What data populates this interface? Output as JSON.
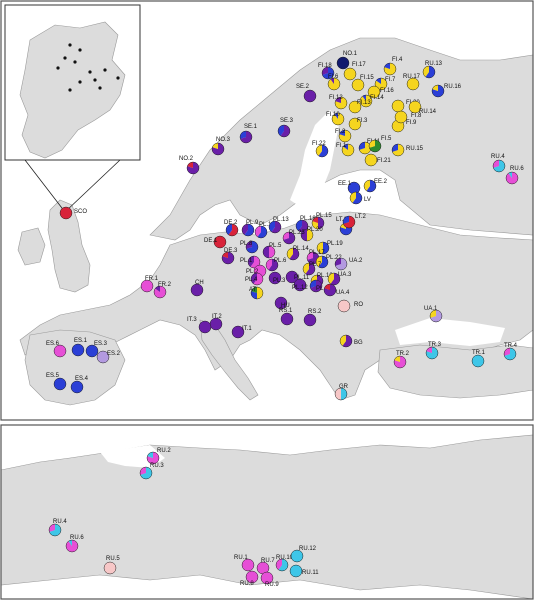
{
  "colors": {
    "magenta": "#e64fd6",
    "purple": "#6a1fa8",
    "blue": "#2b3fd6",
    "cyan": "#3ec6e8",
    "yellow": "#f5d51f",
    "red": "#d8233a",
    "green": "#2e8b2e",
    "lavender": "#b39ae0",
    "pink": "#f7c7c7",
    "navy": "#121a6e"
  },
  "top_panel": {
    "inset_label": "SCO",
    "sites": [
      {
        "label": "NO.1",
        "parts": [
          {
            "c": "navy",
            "v": 1
          }
        ]
      },
      {
        "label": "FI.18",
        "parts": [
          {
            "c": "blue",
            "v": 0.7
          },
          {
            "c": "purple",
            "v": 0.3
          }
        ]
      },
      {
        "label": "FI.17",
        "parts": [
          {
            "c": "yellow",
            "v": 1
          }
        ]
      },
      {
        "label": "FI.4",
        "parts": [
          {
            "c": "yellow",
            "v": 0.8
          },
          {
            "c": "blue",
            "v": 0.2
          }
        ]
      },
      {
        "label": "FI.6",
        "parts": [
          {
            "c": "yellow",
            "v": 0.9
          },
          {
            "c": "purple",
            "v": 0.1
          }
        ]
      },
      {
        "label": "FI.15",
        "parts": [
          {
            "c": "yellow",
            "v": 1
          }
        ]
      },
      {
        "label": "FI.7",
        "parts": [
          {
            "c": "yellow",
            "v": 0.85
          },
          {
            "c": "blue",
            "v": 0.15
          }
        ]
      },
      {
        "label": "FI.16",
        "parts": [
          {
            "c": "yellow",
            "v": 1
          }
        ]
      },
      {
        "label": "FI.14",
        "parts": [
          {
            "c": "yellow",
            "v": 0.9
          },
          {
            "c": "blue",
            "v": 0.1
          }
        ]
      },
      {
        "label": "FI.12",
        "parts": [
          {
            "c": "yellow",
            "v": 0.8
          },
          {
            "c": "purple",
            "v": 0.2
          }
        ]
      },
      {
        "label": "FI.13",
        "parts": [
          {
            "c": "yellow",
            "v": 1
          }
        ]
      },
      {
        "label": "FI.20",
        "parts": [
          {
            "c": "yellow",
            "v": 1
          }
        ]
      },
      {
        "label": "FI.10",
        "parts": [
          {
            "c": "yellow",
            "v": 0.9
          },
          {
            "c": "blue",
            "v": 0.1
          }
        ]
      },
      {
        "label": "FI.3",
        "parts": [
          {
            "c": "yellow",
            "v": 1
          }
        ]
      },
      {
        "label": "FI.9",
        "parts": [
          {
            "c": "yellow",
            "v": 1
          }
        ]
      },
      {
        "label": "FI.8",
        "parts": [
          {
            "c": "yellow",
            "v": 1
          }
        ]
      },
      {
        "label": "FI.2",
        "parts": [
          {
            "c": "yellow",
            "v": 0.8
          },
          {
            "c": "blue",
            "v": 0.2
          }
        ]
      },
      {
        "label": "FI.11",
        "parts": [
          {
            "c": "yellow",
            "v": 0.7
          },
          {
            "c": "blue",
            "v": 0.3
          }
        ]
      },
      {
        "label": "FI.5",
        "parts": [
          {
            "c": "green",
            "v": 0.7
          },
          {
            "c": "yellow",
            "v": 0.3
          }
        ]
      },
      {
        "label": "FI.1",
        "parts": [
          {
            "c": "yellow",
            "v": 0.85
          },
          {
            "c": "blue",
            "v": 0.15
          }
        ]
      },
      {
        "label": "FI.22",
        "parts": [
          {
            "c": "blue",
            "v": 0.6
          },
          {
            "c": "yellow",
            "v": 0.4
          }
        ]
      },
      {
        "label": "FI.21",
        "parts": [
          {
            "c": "yellow",
            "v": 1
          }
        ]
      },
      {
        "label": "RU.17",
        "parts": [
          {
            "c": "yellow",
            "v": 1
          }
        ]
      },
      {
        "label": "RU.13",
        "parts": [
          {
            "c": "blue",
            "v": 0.6
          },
          {
            "c": "yellow",
            "v": 0.4
          }
        ]
      },
      {
        "label": "RU.16",
        "parts": [
          {
            "c": "blue",
            "v": 0.8
          },
          {
            "c": "yellow",
            "v": 0.2
          }
        ]
      },
      {
        "label": "RU.14",
        "parts": [
          {
            "c": "yellow",
            "v": 1
          }
        ]
      },
      {
        "label": "RU.15",
        "parts": [
          {
            "c": "yellow",
            "v": 0.7
          },
          {
            "c": "blue",
            "v": 0.3
          }
        ]
      },
      {
        "label": "SE.2",
        "parts": [
          {
            "c": "purple",
            "v": 1
          }
        ]
      },
      {
        "label": "SE.1",
        "parts": [
          {
            "c": "purple",
            "v": 0.7
          },
          {
            "c": "blue",
            "v": 0.3
          }
        ]
      },
      {
        "label": "SE.3",
        "parts": [
          {
            "c": "purple",
            "v": 0.6
          },
          {
            "c": "blue",
            "v": 0.4
          }
        ]
      },
      {
        "label": "NO.3",
        "parts": [
          {
            "c": "purple",
            "v": 0.8
          },
          {
            "c": "yellow",
            "v": 0.2
          }
        ]
      },
      {
        "label": "NO.2",
        "parts": [
          {
            "c": "purple",
            "v": 0.8
          },
          {
            "c": "red",
            "v": 0.2
          }
        ]
      },
      {
        "label": "EE.1",
        "parts": [
          {
            "c": "blue",
            "v": 1
          }
        ]
      },
      {
        "label": "EE.2",
        "parts": [
          {
            "c": "blue",
            "v": 0.6
          },
          {
            "c": "yellow",
            "v": 0.4
          }
        ]
      },
      {
        "label": "LV",
        "parts": [
          {
            "c": "blue",
            "v": 0.6
          },
          {
            "c": "yellow",
            "v": 0.4
          }
        ]
      },
      {
        "label": "RU.4",
        "parts": [
          {
            "c": "cyan",
            "v": 0.7
          },
          {
            "c": "magenta",
            "v": 0.3
          }
        ]
      },
      {
        "label": "RU.6",
        "parts": [
          {
            "c": "magenta",
            "v": 0.9
          },
          {
            "c": "cyan",
            "v": 0.1
          }
        ]
      },
      {
        "label": "SCO",
        "parts": [
          {
            "c": "red",
            "v": 1
          }
        ]
      },
      {
        "label": "LT.1",
        "parts": [
          {
            "c": "blue",
            "v": 0.8
          },
          {
            "c": "yellow",
            "v": 0.2
          }
        ]
      },
      {
        "label": "LT.2",
        "parts": [
          {
            "c": "red",
            "v": 0.7
          },
          {
            "c": "blue",
            "v": 0.3
          }
        ]
      },
      {
        "label": "DE.2",
        "parts": [
          {
            "c": "red",
            "v": 0.6
          },
          {
            "c": "blue",
            "v": 0.4
          }
        ]
      },
      {
        "label": "DE.1",
        "parts": [
          {
            "c": "red",
            "v": 1
          }
        ]
      },
      {
        "label": "PL.9",
        "parts": [
          {
            "c": "blue",
            "v": 0.6
          },
          {
            "c": "purple",
            "v": 0.4
          }
        ]
      },
      {
        "label": "PL.16",
        "parts": [
          {
            "c": "blue",
            "v": 0.6
          },
          {
            "c": "magenta",
            "v": 0.4
          }
        ]
      },
      {
        "label": "PL.13",
        "parts": [
          {
            "c": "purple",
            "v": 0.6
          },
          {
            "c": "blue",
            "v": 0.4
          }
        ]
      },
      {
        "label": "PL.18",
        "parts": [
          {
            "c": "purple",
            "v": 0.6
          },
          {
            "c": "blue",
            "v": 0.4
          }
        ]
      },
      {
        "label": "PL.15",
        "parts": [
          {
            "c": "purple",
            "v": 0.5
          },
          {
            "c": "yellow",
            "v": 0.3
          },
          {
            "c": "red",
            "v": 0.2
          }
        ]
      },
      {
        "label": "PL.20",
        "parts": [
          {
            "c": "yellow",
            "v": 0.5
          },
          {
            "c": "purple",
            "v": 0.5
          }
        ]
      },
      {
        "label": "PL.23",
        "parts": [
          {
            "c": "purple",
            "v": 0.7
          },
          {
            "c": "magenta",
            "v": 0.3
          }
        ]
      },
      {
        "label": "PL.19",
        "parts": [
          {
            "c": "blue",
            "v": 0.5
          },
          {
            "c": "yellow",
            "v": 0.5
          }
        ]
      },
      {
        "label": "PL.8",
        "parts": [
          {
            "c": "blue",
            "v": 0.7
          },
          {
            "c": "purple",
            "v": 0.3
          }
        ]
      },
      {
        "label": "PL.5",
        "parts": [
          {
            "c": "magenta",
            "v": 0.5
          },
          {
            "c": "purple",
            "v": 0.5
          }
        ]
      },
      {
        "label": "PL.14",
        "parts": [
          {
            "c": "purple",
            "v": 0.6
          },
          {
            "c": "yellow",
            "v": 0.4
          }
        ]
      },
      {
        "label": "PL.17",
        "parts": [
          {
            "c": "purple",
            "v": 0.7
          },
          {
            "c": "magenta",
            "v": 0.3
          }
        ]
      },
      {
        "label": "PL.22",
        "parts": [
          {
            "c": "blue",
            "v": 0.6
          },
          {
            "c": "yellow",
            "v": 0.4
          }
        ]
      },
      {
        "label": "PL.1",
        "parts": [
          {
            "c": "magenta",
            "v": 0.6
          },
          {
            "c": "purple",
            "v": 0.4
          }
        ]
      },
      {
        "label": "PL.6",
        "parts": [
          {
            "c": "purple",
            "v": 0.6
          },
          {
            "c": "magenta",
            "v": 0.4
          }
        ]
      },
      {
        "label": "PL.7",
        "parts": [
          {
            "c": "purple",
            "v": 0.6
          },
          {
            "c": "yellow",
            "v": 0.4
          }
        ]
      },
      {
        "label": "PL.2",
        "parts": [
          {
            "c": "magenta",
            "v": 1
          }
        ]
      },
      {
        "label": "PL.3",
        "parts": [
          {
            "c": "purple",
            "v": 1
          }
        ]
      },
      {
        "label": "PL.4",
        "parts": [
          {
            "c": "magenta",
            "v": 0.6
          },
          {
            "c": "purple",
            "v": 0.4
          }
        ]
      },
      {
        "label": "PL.11",
        "parts": [
          {
            "c": "purple",
            "v": 1
          }
        ]
      },
      {
        "label": "PL.10",
        "parts": [
          {
            "c": "purple",
            "v": 0.7
          },
          {
            "c": "yellow",
            "v": 0.3
          }
        ]
      },
      {
        "label": "PL.12",
        "parts": [
          {
            "c": "purple",
            "v": 1
          }
        ]
      },
      {
        "label": "PL.21",
        "parts": [
          {
            "c": "purple",
            "v": 0.7
          },
          {
            "c": "blue",
            "v": 0.3
          }
        ]
      },
      {
        "label": "UA.2",
        "parts": [
          {
            "c": "lavender",
            "v": 0.7
          },
          {
            "c": "purple",
            "v": 0.3
          }
        ]
      },
      {
        "label": "UA.3",
        "parts": [
          {
            "c": "purple",
            "v": 0.6
          },
          {
            "c": "yellow",
            "v": 0.4
          }
        ]
      },
      {
        "label": "UA.4",
        "parts": [
          {
            "c": "purple",
            "v": 0.8
          },
          {
            "c": "red",
            "v": 0.2
          }
        ]
      },
      {
        "label": "DE.3",
        "parts": [
          {
            "c": "purple",
            "v": 0.8
          },
          {
            "c": "red",
            "v": 0.2
          }
        ]
      },
      {
        "label": "AT",
        "parts": [
          {
            "c": "yellow",
            "v": 0.5
          },
          {
            "c": "blue",
            "v": 0.3
          },
          {
            "c": "green",
            "v": 0.2
          }
        ]
      },
      {
        "label": "HU",
        "parts": [
          {
            "c": "purple",
            "v": 1
          }
        ]
      },
      {
        "label": "CH",
        "parts": [
          {
            "c": "purple",
            "v": 1
          }
        ]
      },
      {
        "label": "FR.1",
        "parts": [
          {
            "c": "magenta",
            "v": 1
          }
        ]
      },
      {
        "label": "FR.2",
        "parts": [
          {
            "c": "magenta",
            "v": 0.85
          },
          {
            "c": "purple",
            "v": 0.15
          }
        ]
      },
      {
        "label": "RO",
        "parts": [
          {
            "c": "pink",
            "v": 1
          }
        ]
      },
      {
        "label": "RS.1",
        "parts": [
          {
            "c": "purple",
            "v": 1
          }
        ]
      },
      {
        "label": "RS.2",
        "parts": [
          {
            "c": "purple",
            "v": 1
          }
        ]
      },
      {
        "label": "IT.2",
        "parts": [
          {
            "c": "purple",
            "v": 1
          }
        ]
      },
      {
        "label": "IT.3",
        "parts": [
          {
            "c": "purple",
            "v": 1
          }
        ]
      },
      {
        "label": "IT.1",
        "parts": [
          {
            "c": "purple",
            "v": 1
          }
        ]
      },
      {
        "label": "UA.1",
        "parts": [
          {
            "c": "lavender",
            "v": 0.7
          },
          {
            "c": "yellow",
            "v": 0.3
          }
        ]
      },
      {
        "label": "BG",
        "parts": [
          {
            "c": "purple",
            "v": 0.6
          },
          {
            "c": "yellow",
            "v": 0.4
          }
        ]
      },
      {
        "label": "ES.6",
        "parts": [
          {
            "c": "magenta",
            "v": 1
          }
        ]
      },
      {
        "label": "ES.1",
        "parts": [
          {
            "c": "blue",
            "v": 1
          }
        ]
      },
      {
        "label": "ES.3",
        "parts": [
          {
            "c": "blue",
            "v": 1
          }
        ]
      },
      {
        "label": "ES.2",
        "parts": [
          {
            "c": "lavender",
            "v": 1
          }
        ]
      },
      {
        "label": "ES.5",
        "parts": [
          {
            "c": "blue",
            "v": 1
          }
        ]
      },
      {
        "label": "ES.4",
        "parts": [
          {
            "c": "blue",
            "v": 1
          }
        ]
      },
      {
        "label": "GR",
        "parts": [
          {
            "c": "cyan",
            "v": 0.5
          },
          {
            "c": "pink",
            "v": 0.5
          }
        ]
      },
      {
        "label": "TR.2",
        "parts": [
          {
            "c": "magenta",
            "v": 0.8
          },
          {
            "c": "yellow",
            "v": 0.2
          }
        ]
      },
      {
        "label": "TR.3",
        "parts": [
          {
            "c": "cyan",
            "v": 0.8
          },
          {
            "c": "magenta",
            "v": 0.2
          }
        ]
      },
      {
        "label": "TR.1",
        "parts": [
          {
            "c": "cyan",
            "v": 1
          }
        ]
      },
      {
        "label": "TR.4",
        "parts": [
          {
            "c": "cyan",
            "v": 0.7
          },
          {
            "c": "magenta",
            "v": 0.3
          }
        ]
      }
    ]
  },
  "bottom_panel": {
    "sites": [
      {
        "label": "RU.2",
        "parts": [
          {
            "c": "magenta",
            "v": 0.8
          },
          {
            "c": "cyan",
            "v": 0.2
          }
        ]
      },
      {
        "label": "RU.3",
        "parts": [
          {
            "c": "cyan",
            "v": 0.7
          },
          {
            "c": "magenta",
            "v": 0.3
          }
        ]
      },
      {
        "label": "RU.4",
        "parts": [
          {
            "c": "cyan",
            "v": 0.7
          },
          {
            "c": "magenta",
            "v": 0.3
          }
        ]
      },
      {
        "label": "RU.6",
        "parts": [
          {
            "c": "magenta",
            "v": 0.9
          },
          {
            "c": "cyan",
            "v": 0.1
          }
        ]
      },
      {
        "label": "RU.5",
        "parts": [
          {
            "c": "pink",
            "v": 1
          }
        ]
      },
      {
        "label": "RU.1",
        "parts": [
          {
            "c": "magenta",
            "v": 1
          }
        ]
      },
      {
        "label": "RU.7",
        "parts": [
          {
            "c": "magenta",
            "v": 1
          }
        ]
      },
      {
        "label": "RU.8",
        "parts": [
          {
            "c": "magenta",
            "v": 1
          }
        ]
      },
      {
        "label": "RU.9",
        "parts": [
          {
            "c": "magenta",
            "v": 1
          }
        ]
      },
      {
        "label": "RU.10",
        "parts": [
          {
            "c": "cyan",
            "v": 0.6
          },
          {
            "c": "magenta",
            "v": 0.4
          }
        ]
      },
      {
        "label": "RU.12",
        "parts": [
          {
            "c": "cyan",
            "v": 1
          }
        ]
      },
      {
        "label": "RU.11",
        "parts": [
          {
            "c": "cyan",
            "v": 1
          }
        ]
      }
    ]
  }
}
